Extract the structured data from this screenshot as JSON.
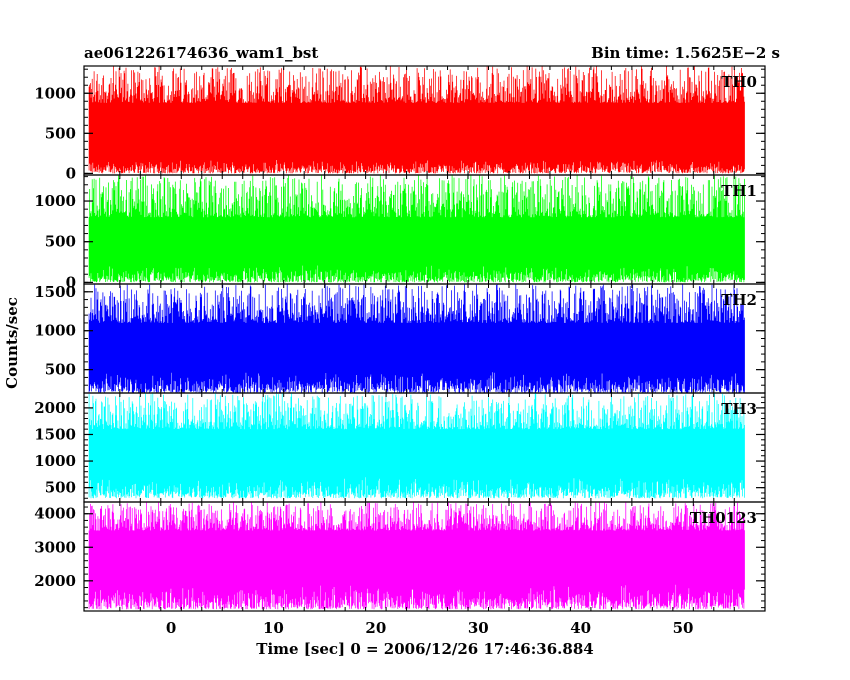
{
  "header": {
    "title": "ae061226174636_wam1_bst",
    "bin_time": "Bin time: 1.5625E−2 s"
  },
  "chart_data": {
    "type": "line",
    "title": "ae061226174636_wam1_bst",
    "subtitle": "Bin time: 1.5625E−2 s",
    "xlabel": "Time [sec] 0 = 2006/12/26 17:46:36.884",
    "ylabel": "Counts/sec",
    "xlim": [
      -8.5,
      58
    ],
    "data_xrange": [
      -8,
      56
    ],
    "bin_time_s": 0.015625,
    "x_ticks": [
      0,
      10,
      20,
      30,
      40,
      50
    ],
    "x_tick_labels": [
      "0",
      "10",
      "20",
      "30",
      "40",
      "50"
    ],
    "panels": [
      {
        "name": "TH0",
        "color": "#ff0000",
        "ylim": [
          -20,
          1340
        ],
        "y_ticks": [
          0,
          500,
          1000
        ],
        "y_tick_labels": [
          "0",
          "500",
          "1000"
        ],
        "minor": 100,
        "low_range": [
          0,
          180
        ],
        "high_range": [
          880,
          1340
        ],
        "mean": 520
      },
      {
        "name": "TH1",
        "color": "#00ff00",
        "ylim": [
          -20,
          1320
        ],
        "y_ticks": [
          0,
          500,
          1000
        ],
        "y_tick_labels": [
          "0",
          "500",
          "1000"
        ],
        "minor": 100,
        "low_range": [
          0,
          220
        ],
        "high_range": [
          800,
          1320
        ],
        "mean": 500
      },
      {
        "name": "TH2",
        "color": "#0000ff",
        "ylim": [
          200,
          1600
        ],
        "y_ticks": [
          500,
          1000,
          1500
        ],
        "y_tick_labels": [
          "500",
          "1000",
          "1500"
        ],
        "minor": 100,
        "low_range": [
          200,
          480
        ],
        "high_range": [
          1100,
          1600
        ],
        "mean": 720
      },
      {
        "name": "TH3",
        "color": "#00ffff",
        "ylim": [
          230,
          2280
        ],
        "y_ticks": [
          500,
          1000,
          1500,
          2000
        ],
        "y_tick_labels": [
          "500",
          "1000",
          "1500",
          "2000"
        ],
        "minor": 100,
        "low_range": [
          300,
          700
        ],
        "high_range": [
          1600,
          2280
        ],
        "mean": 1150
      },
      {
        "name": "TH0123",
        "color": "#ff00ff",
        "ylim": [
          1100,
          4350
        ],
        "y_ticks": [
          2000,
          3000,
          4000
        ],
        "y_tick_labels": [
          "2000",
          "3000",
          "4000"
        ],
        "minor": 200,
        "low_range": [
          1150,
          1900
        ],
        "high_range": [
          3500,
          4350
        ],
        "mean": 2700
      }
    ]
  }
}
